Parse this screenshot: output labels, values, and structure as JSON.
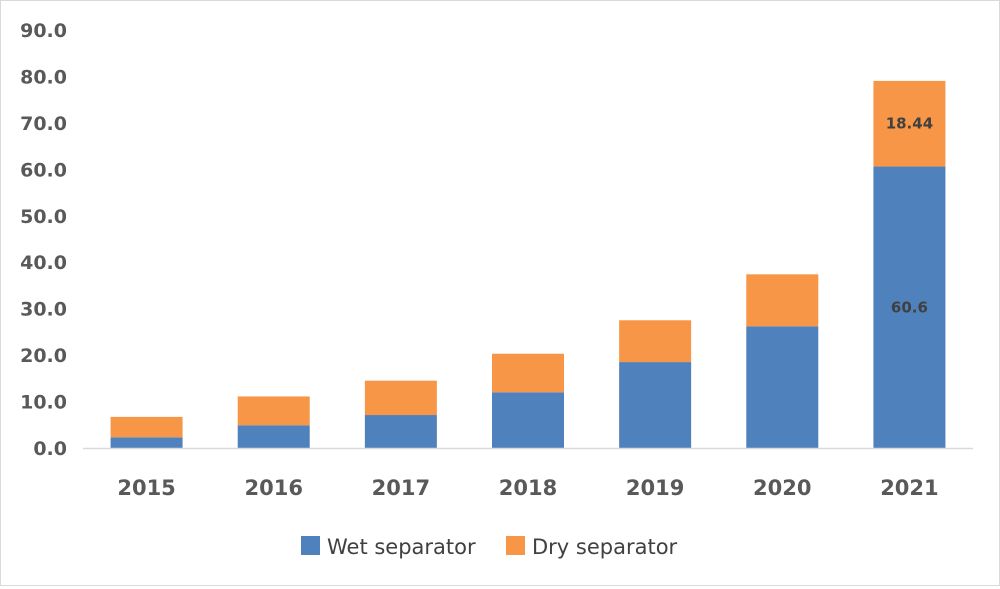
{
  "chart_data": {
    "type": "bar",
    "stacked": true,
    "categories": [
      "2015",
      "2016",
      "2017",
      "2018",
      "2019",
      "2020",
      "2021"
    ],
    "series": [
      {
        "name": "Wet separator",
        "color": "#4f81bd",
        "values": [
          2.3,
          4.9,
          7.1,
          12.0,
          18.5,
          26.2,
          60.6
        ]
      },
      {
        "name": "Dry separator",
        "color": "#f79646",
        "values": [
          4.4,
          6.2,
          7.4,
          8.3,
          9.0,
          11.2,
          18.44
        ]
      }
    ],
    "data_labels": [
      {
        "series": 0,
        "category": 6,
        "text": "60.6"
      },
      {
        "series": 1,
        "category": 6,
        "text": "18.44"
      }
    ],
    "yticks": [
      "0.0",
      "10.0",
      "20.0",
      "30.0",
      "40.0",
      "50.0",
      "60.0",
      "70.0",
      "80.0",
      "90.0"
    ],
    "ylim": [
      0,
      90
    ],
    "grid": false,
    "legend_position": "bottom"
  }
}
